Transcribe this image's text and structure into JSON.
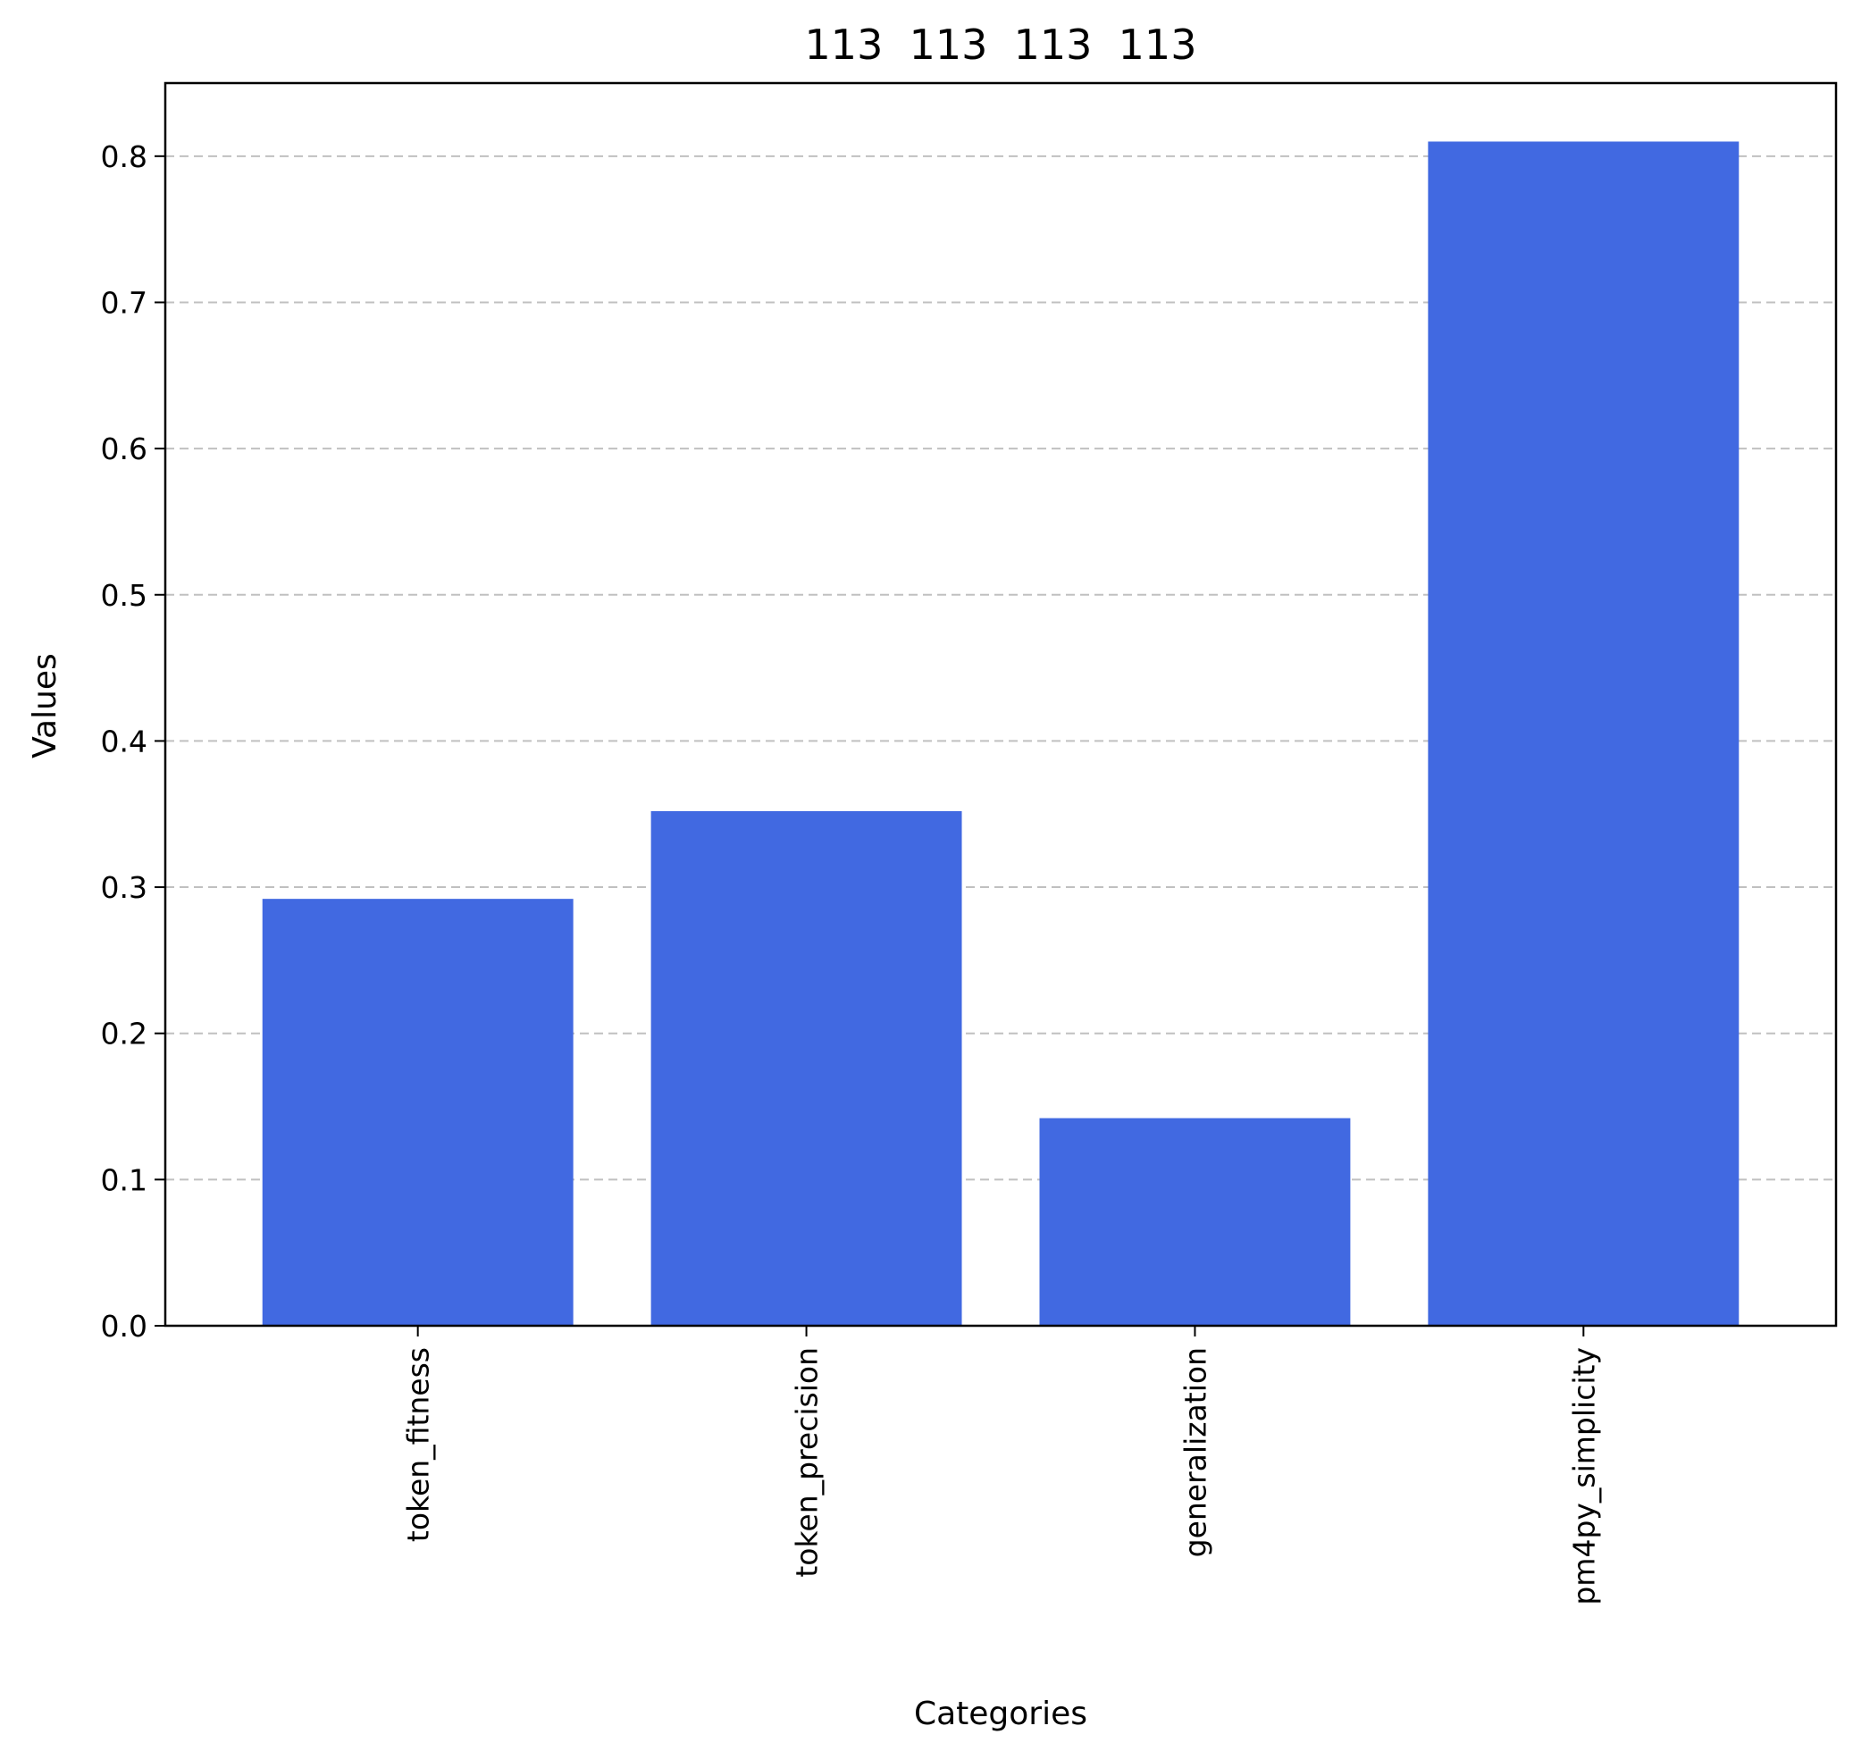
{
  "chart_data": {
    "type": "bar",
    "title": "113  113  113  113",
    "xlabel": "Categories",
    "ylabel": "Values",
    "categories": [
      "token_fitness",
      "token_precision",
      "generalization",
      "pm4py_simplicity"
    ],
    "values": [
      0.292,
      0.352,
      0.142,
      0.81
    ],
    "ylim": [
      0,
      0.85
    ],
    "yticks": [
      0.0,
      0.1,
      0.2,
      0.3,
      0.4,
      0.5,
      0.6,
      0.7,
      0.8
    ],
    "ytick_labels": [
      "0.0",
      "0.1",
      "0.2",
      "0.3",
      "0.4",
      "0.5",
      "0.6",
      "0.7",
      "0.8"
    ],
    "grid": "y-dashed",
    "bar_color": "#4169e1",
    "grid_color": "#c0c0c0"
  }
}
